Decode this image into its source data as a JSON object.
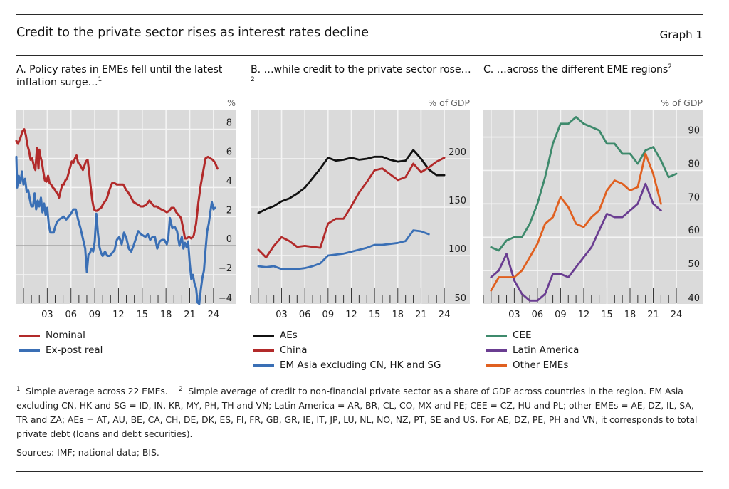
{
  "header": {
    "title": "Credit to the private sector rises as interest rates decline",
    "graph_label": "Graph 1"
  },
  "panels": [
    {
      "title": "A. Policy rates in EMEs fell until the latest inflation surge…",
      "footnote_mark": "1",
      "unit": "%"
    },
    {
      "title": "B. …while credit to the private sector rose…",
      "footnote_mark": "2",
      "unit": "% of GDP"
    },
    {
      "title": "C. …across the different EME regions",
      "footnote_mark": "2",
      "unit": "% of GDP"
    }
  ],
  "footnotes": {
    "note1_mark": "1",
    "note1": "Simple average across 22 EMEs.",
    "note2_mark": "2",
    "note2": "Simple average of credit to non-financial private sector as a share of GDP across countries in the region. EM Asia excluding CN, HK and SG = ID, IN, KR, MY, PH, TH and VN; Latin America = AR, BR, CL, CO, MX and PE; CEE = CZ, HU and PL; other EMEs = AE, DZ, IL, SA, TR and ZA; AEs = AT, AU, BE, CA, CH, DE, DK, ES, FI, FR, GB, GR, IE, IT, JP, LU, NL, NO, NZ, PT, SE and US. For AE, DZ, PE, PH and VN, it corresponds to total private debt (loans and debt securities).",
    "sources": "Sources: IMF; national data; BIS."
  },
  "chart_data": [
    {
      "type": "line",
      "title": "A. Policy rates in EMEs fell until the latest inflation surge…",
      "ylabel": "%",
      "xlabel": "",
      "xlim": [
        1999.1,
        2026.8
      ],
      "ylim": [
        -4,
        9.3
      ],
      "yticks": [
        -4,
        -2,
        0,
        2,
        4,
        6,
        8
      ],
      "ytick_labels": [
        "−4",
        "−2",
        "0",
        "2",
        "4",
        "6",
        "8"
      ],
      "xticks_major": [
        2000,
        2003,
        2006,
        2009,
        2012,
        2015,
        2018,
        2021,
        2024
      ],
      "xtick_labels": [
        "03",
        "06",
        "09",
        "12",
        "15",
        "18",
        "21",
        "24"
      ],
      "xtick_label_years": [
        2003,
        2006,
        2009,
        2012,
        2015,
        2018,
        2021,
        2024
      ],
      "zero_line": true,
      "grid": true,
      "legend_position": "below",
      "series": [
        {
          "name": "Nominal",
          "color": "#b22a2a",
          "x": [
            1999.1,
            1999.3,
            1999.6,
            1999.9,
            2000.1,
            2000.3,
            2000.5,
            2000.7,
            2000.9,
            2001.1,
            2001.3,
            2001.5,
            2001.7,
            2001.9,
            2002.0,
            2002.1,
            2002.3,
            2002.5,
            2002.7,
            2002.9,
            2003.1,
            2003.3,
            2003.5,
            2003.7,
            2003.9,
            2004.1,
            2004.3,
            2004.5,
            2004.7,
            2004.9,
            2005.1,
            2005.3,
            2005.5,
            2005.7,
            2005.9,
            2006.1,
            2006.3,
            2006.5,
            2006.7,
            2006.9,
            2007.1,
            2007.3,
            2007.5,
            2007.7,
            2007.9,
            2008.1,
            2008.3,
            2008.5,
            2008.7,
            2008.9,
            2009.1,
            2009.3,
            2009.5,
            2009.8,
            2010.1,
            2010.5,
            2010.9,
            2011.2,
            2011.5,
            2011.8,
            2012.2,
            2012.6,
            2013.0,
            2013.3,
            2013.6,
            2013.9,
            2014.2,
            2014.5,
            2014.8,
            2015.1,
            2015.5,
            2015.9,
            2016.2,
            2016.5,
            2016.8,
            2017.1,
            2017.4,
            2017.8,
            2018.1,
            2018.4,
            2018.7,
            2019.0,
            2019.3,
            2019.6,
            2019.9,
            2020.2,
            2020.4,
            2020.6,
            2020.9,
            2021.2,
            2021.5,
            2021.8,
            2022.1,
            2022.4,
            2022.7,
            2023.0,
            2023.3,
            2023.6,
            2023.9,
            2024.2,
            2024.5
          ],
          "y": [
            7.2,
            7.0,
            7.4,
            7.9,
            8.0,
            7.6,
            6.9,
            6.5,
            5.9,
            6.0,
            5.5,
            5.2,
            6.7,
            5.3,
            6.6,
            6.2,
            5.8,
            5.1,
            4.5,
            4.4,
            4.8,
            4.3,
            4.2,
            4.0,
            3.9,
            3.7,
            3.6,
            3.3,
            3.8,
            4.2,
            4.2,
            4.5,
            4.6,
            5.0,
            5.4,
            5.8,
            5.7,
            6.0,
            6.2,
            5.7,
            5.6,
            5.4,
            5.2,
            5.5,
            5.8,
            5.9,
            5.0,
            4.0,
            3.1,
            2.5,
            2.4,
            2.4,
            2.5,
            2.6,
            2.9,
            3.2,
            3.9,
            4.3,
            4.3,
            4.2,
            4.2,
            4.2,
            3.8,
            3.6,
            3.3,
            3.0,
            2.9,
            2.8,
            2.7,
            2.7,
            2.8,
            3.1,
            2.9,
            2.7,
            2.7,
            2.6,
            2.5,
            2.4,
            2.3,
            2.4,
            2.6,
            2.6,
            2.3,
            2.1,
            1.9,
            1.1,
            0.5,
            0.5,
            0.6,
            0.5,
            0.7,
            1.5,
            3.0,
            4.2,
            5.1,
            6.0,
            6.1,
            6.0,
            5.9,
            5.7,
            5.3
          ]
        },
        {
          "name": "Ex-post real",
          "color": "#3a6fb5",
          "x": [
            1999.1,
            1999.2,
            1999.4,
            1999.6,
            1999.8,
            2000.0,
            2000.2,
            2000.4,
            2000.6,
            2000.8,
            2001.0,
            2001.2,
            2001.4,
            2001.6,
            2001.8,
            2002.0,
            2002.2,
            2002.4,
            2002.6,
            2002.8,
            2003.0,
            2003.2,
            2003.4,
            2003.6,
            2003.8,
            2004.0,
            2004.2,
            2004.5,
            2004.8,
            2005.1,
            2005.4,
            2005.7,
            2006.0,
            2006.3,
            2006.6,
            2006.9,
            2007.2,
            2007.5,
            2007.8,
            2008.0,
            2008.2,
            2008.4,
            2008.6,
            2008.8,
            2009.0,
            2009.2,
            2009.4,
            2009.6,
            2009.8,
            2010.0,
            2010.3,
            2010.6,
            2010.9,
            2011.2,
            2011.5,
            2011.8,
            2012.1,
            2012.4,
            2012.7,
            2013.0,
            2013.3,
            2013.6,
            2013.9,
            2014.2,
            2014.5,
            2014.8,
            2015.1,
            2015.4,
            2015.7,
            2016.0,
            2016.3,
            2016.6,
            2016.9,
            2017.2,
            2017.5,
            2017.8,
            2018.1,
            2018.3,
            2018.5,
            2018.8,
            2019.1,
            2019.4,
            2019.7,
            2020.0,
            2020.2,
            2020.4,
            2020.6,
            2020.8,
            2021.0,
            2021.2,
            2021.4,
            2021.6,
            2021.8,
            2022.0,
            2022.2,
            2022.4,
            2022.6,
            2022.8,
            2023.0,
            2023.2,
            2023.4,
            2023.6,
            2023.8,
            2024.0,
            2024.2
          ],
          "y": [
            6.1,
            4.0,
            4.8,
            4.3,
            5.1,
            4.2,
            4.6,
            3.7,
            3.8,
            3.2,
            2.7,
            2.7,
            3.6,
            2.5,
            3.1,
            2.7,
            3.3,
            2.3,
            2.9,
            2.1,
            2.6,
            1.4,
            0.9,
            0.9,
            0.9,
            1.3,
            1.6,
            1.8,
            1.9,
            2.0,
            1.8,
            2.0,
            2.2,
            2.5,
            2.5,
            1.8,
            1.2,
            0.5,
            -0.2,
            -1.8,
            -0.6,
            -0.5,
            -0.2,
            -0.4,
            0.3,
            2.2,
            0.9,
            -0.1,
            -0.5,
            -0.7,
            -0.4,
            -0.7,
            -0.7,
            -0.5,
            -0.3,
            0.4,
            0.6,
            0.1,
            0.9,
            0.5,
            -0.2,
            -0.4,
            0.0,
            0.5,
            1.0,
            0.8,
            0.7,
            0.6,
            0.8,
            0.4,
            0.6,
            0.6,
            -0.2,
            0.3,
            0.4,
            0.4,
            0.1,
            0.6,
            1.9,
            1.2,
            1.3,
            1.0,
            0.0,
            0.6,
            -0.2,
            0.2,
            -0.1,
            0.3,
            -1.2,
            -2.3,
            -2.0,
            -2.6,
            -2.9,
            -3.9,
            -4.0,
            -3.0,
            -2.2,
            -1.7,
            -0.3,
            1.0,
            1.5,
            2.3,
            3.0,
            2.5,
            2.6
          ]
        }
      ]
    },
    {
      "type": "line",
      "title": "B. …while credit to the private sector rose…",
      "ylabel": "% of GDP",
      "xlabel": "",
      "xlim": [
        1999.0,
        2027.3
      ],
      "ylim": [
        50,
        250
      ],
      "yticks": [
        50,
        100,
        150,
        200
      ],
      "ytick_labels": [
        "50",
        "100",
        "150",
        "200"
      ],
      "xticks_major": [
        2000,
        2003,
        2006,
        2009,
        2012,
        2015,
        2018,
        2021,
        2024
      ],
      "xtick_labels": [
        "03",
        "06",
        "09",
        "12",
        "15",
        "18",
        "21",
        "24"
      ],
      "xtick_label_years": [
        2003,
        2006,
        2009,
        2012,
        2015,
        2018,
        2021,
        2024
      ],
      "grid": true,
      "legend_position": "below",
      "series": [
        {
          "name": "AEs",
          "color": "#111111",
          "x": [
            2000,
            2001,
            2002,
            2003,
            2004,
            2005,
            2006,
            2007,
            2008,
            2009,
            2010,
            2011,
            2012,
            2013,
            2014,
            2015,
            2016,
            2017,
            2018,
            2019,
            2020,
            2021,
            2022,
            2023,
            2024
          ],
          "y": [
            144,
            148,
            151,
            156,
            159,
            164,
            170,
            180,
            190,
            201,
            198,
            199,
            201,
            199,
            200,
            202,
            202,
            199,
            197,
            198,
            209,
            200,
            189,
            183,
            183
          ]
        },
        {
          "name": "China",
          "color": "#b22a2a",
          "x": [
            2000,
            2001,
            2002,
            2003,
            2004,
            2005,
            2006,
            2007,
            2008,
            2009,
            2010,
            2011,
            2012,
            2013,
            2014,
            2015,
            2016,
            2017,
            2018,
            2019,
            2020,
            2021,
            2022,
            2023,
            2024
          ],
          "y": [
            106,
            98,
            110,
            119,
            115,
            109,
            110,
            109,
            108,
            133,
            138,
            138,
            151,
            165,
            176,
            188,
            190,
            184,
            178,
            181,
            195,
            186,
            191,
            197,
            201
          ]
        },
        {
          "name": "EM Asia excluding CN, HK and SG",
          "color": "#3a6fb5",
          "x": [
            2000,
            2001,
            2002,
            2003,
            2004,
            2005,
            2006,
            2007,
            2008,
            2009,
            2010,
            2011,
            2012,
            2013,
            2014,
            2015,
            2016,
            2017,
            2018,
            2019,
            2020,
            2021,
            2022
          ],
          "y": [
            89,
            88,
            89,
            86,
            86,
            86,
            87,
            89,
            92,
            100,
            101,
            102,
            104,
            106,
            108,
            111,
            111,
            112,
            113,
            115,
            126,
            125,
            122
          ]
        }
      ]
    },
    {
      "type": "line",
      "title": "C. …across the different EME regions",
      "ylabel": "% of GDP",
      "xlabel": "",
      "xlim": [
        1999.0,
        2027.5
      ],
      "ylim": [
        40,
        98
      ],
      "yticks": [
        40,
        50,
        60,
        70,
        80,
        90
      ],
      "ytick_labels": [
        "40",
        "50",
        "60",
        "70",
        "80",
        "90"
      ],
      "xticks_major": [
        2000,
        2003,
        2006,
        2009,
        2012,
        2015,
        2018,
        2021,
        2024
      ],
      "xtick_labels": [
        "03",
        "06",
        "09",
        "12",
        "15",
        "18",
        "21",
        "24"
      ],
      "xtick_label_years": [
        2003,
        2006,
        2009,
        2012,
        2015,
        2018,
        2021,
        2024
      ],
      "grid": true,
      "legend_position": "below",
      "series": [
        {
          "name": "CEE",
          "color": "#3e8a6c",
          "x": [
            2000,
            2001,
            2002,
            2003,
            2004,
            2005,
            2006,
            2007,
            2008,
            2009,
            2010,
            2011,
            2012,
            2013,
            2014,
            2015,
            2016,
            2017,
            2018,
            2019,
            2020,
            2021,
            2022,
            2023,
            2024
          ],
          "y": [
            57,
            56,
            59,
            60,
            60,
            64,
            70,
            78,
            88,
            94,
            94,
            96,
            94,
            93,
            92,
            88,
            88,
            85,
            85,
            82,
            86,
            87,
            83,
            78,
            79
          ]
        },
        {
          "name": "Latin America",
          "color": "#6a3d91",
          "x": [
            2000,
            2001,
            2002,
            2003,
            2004,
            2005,
            2006,
            2007,
            2008,
            2009,
            2010,
            2011,
            2012,
            2013,
            2014,
            2015,
            2016,
            2017,
            2018,
            2019,
            2020,
            2021,
            2022
          ],
          "y": [
            48,
            50,
            55,
            47,
            43,
            41,
            41,
            43,
            49,
            49,
            48,
            51,
            54,
            57,
            62,
            67,
            66,
            66,
            68,
            70,
            76,
            70,
            68
          ]
        },
        {
          "name": "Other EMEs",
          "color": "#e06020",
          "x": [
            2000,
            2001,
            2002,
            2003,
            2004,
            2005,
            2006,
            2007,
            2008,
            2009,
            2010,
            2011,
            2012,
            2013,
            2014,
            2015,
            2016,
            2017,
            2018,
            2019,
            2020,
            2021,
            2022
          ],
          "y": [
            44,
            48,
            48,
            48,
            50,
            54,
            58,
            64,
            66,
            72,
            69,
            64,
            63,
            66,
            68,
            74,
            77,
            76,
            74,
            75,
            85,
            79,
            70
          ]
        }
      ]
    }
  ]
}
